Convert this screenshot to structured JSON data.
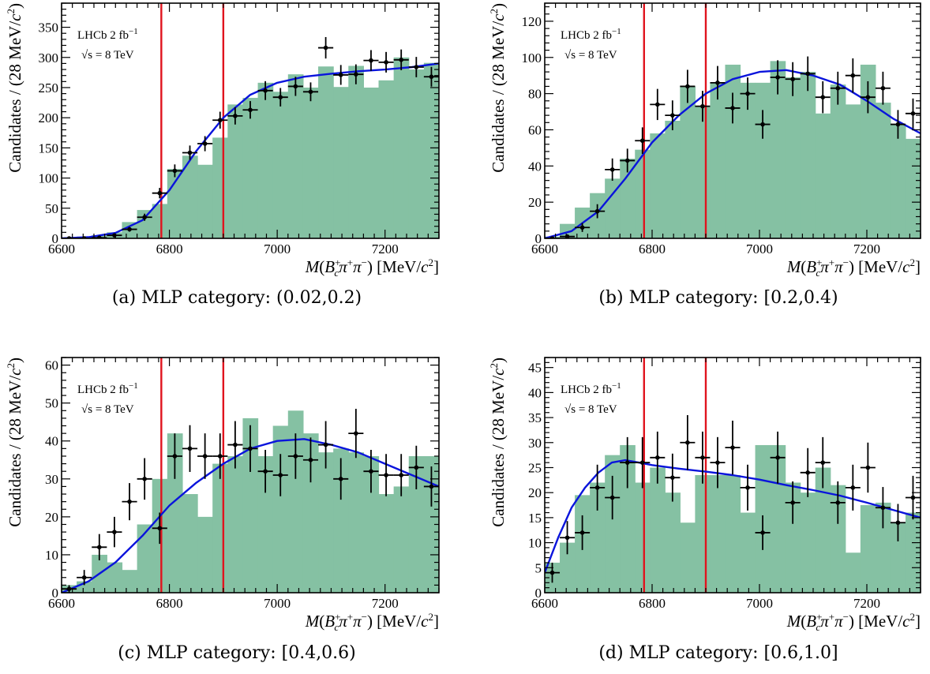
{
  "style": {
    "fill_color": "#85c1a3",
    "fit_color": "#0a14dc",
    "cut_line_color": "#e0141e",
    "point_color": "#000000"
  },
  "chart_data": [
    {
      "type": "histogram",
      "caption": "(a) MLP category: (0.02,0.2)",
      "experiment": "LHCb  2 fb⁻¹",
      "energy": "√s = 8 TeV",
      "xlabel": "M(B_c⁺π⁺π⁻) [MeV/c²]",
      "ylabel": "Candidates / (28 MeV/c²)",
      "xlim": [
        6600,
        7300
      ],
      "ylim": [
        0,
        390
      ],
      "xticks": [
        6600,
        6800,
        7000,
        7200
      ],
      "yticks": [
        0,
        50,
        100,
        150,
        200,
        250,
        300,
        350
      ],
      "cut_lines": [
        6785,
        6900
      ],
      "bin_edges": [
        6600,
        6628,
        6656,
        6684,
        6712,
        6740,
        6768,
        6796,
        6824,
        6852,
        6880,
        6908,
        6936,
        6964,
        6992,
        7020,
        7048,
        7076,
        7104,
        7132,
        7160,
        7188,
        7216,
        7244,
        7272,
        7300
      ],
      "fill": [
        0,
        3,
        5,
        10,
        27,
        47,
        57,
        115,
        137,
        122,
        167,
        222,
        233,
        258,
        243,
        272,
        250,
        285,
        251,
        286,
        250,
        262,
        300,
        280,
        291
      ],
      "points": {
        "x": [
          6614,
          6642,
          6670,
          6698,
          6726,
          6754,
          6782,
          6810,
          6838,
          6866,
          6894,
          6922,
          6950,
          6978,
          7006,
          7034,
          7062,
          7090,
          7118,
          7146,
          7174,
          7202,
          7230,
          7258,
          7286
        ],
        "y": [
          0,
          0,
          1,
          5,
          15,
          35,
          75,
          112,
          142,
          157,
          196,
          203,
          213,
          245,
          234,
          252,
          243,
          316,
          271,
          272,
          295,
          292,
          296,
          284,
          268
        ]
      },
      "fit": {
        "x": [
          6600,
          6650,
          6700,
          6750,
          6800,
          6850,
          6900,
          6950,
          7000,
          7050,
          7100,
          7150,
          7200,
          7250,
          7300
        ],
        "y": [
          0,
          2,
          9,
          30,
          80,
          145,
          200,
          238,
          258,
          268,
          273,
          277,
          280,
          284,
          290
        ]
      }
    },
    {
      "type": "histogram",
      "caption": "(b) MLP category: [0.2,0.4)",
      "experiment": "LHCb  2 fb⁻¹",
      "energy": "√s = 8 TeV",
      "xlabel": "M(B_c⁺π⁺π⁻) [MeV/c²]",
      "ylabel": "Candidates / (28 MeV/c²)",
      "xlim": [
        6600,
        7300
      ],
      "ylim": [
        0,
        130
      ],
      "xticks": [
        6600,
        6800,
        7000,
        7200
      ],
      "yticks": [
        0,
        20,
        40,
        60,
        80,
        100,
        120
      ],
      "cut_lines": [
        6785,
        6900
      ],
      "bin_edges": [
        6600,
        6628,
        6656,
        6684,
        6712,
        6740,
        6768,
        6796,
        6824,
        6852,
        6880,
        6908,
        6936,
        6964,
        6992,
        7020,
        7048,
        7076,
        7104,
        7132,
        7160,
        7188,
        7216,
        7244,
        7272,
        7300
      ],
      "fill": [
        1,
        8,
        17,
        25,
        33,
        44,
        49,
        58,
        65,
        84,
        73,
        86,
        96,
        86,
        86,
        98,
        89,
        92,
        69,
        85,
        74,
        96,
        75,
        63,
        55
      ],
      "points": {
        "x": [
          6614,
          6642,
          6670,
          6698,
          6726,
          6754,
          6782,
          6810,
          6838,
          6866,
          6894,
          6922,
          6950,
          6978,
          7006,
          7034,
          7062,
          7090,
          7118,
          7146,
          7174,
          7202,
          7230,
          7258,
          7286
        ],
        "y": [
          0,
          1,
          6,
          15,
          38,
          43,
          54,
          74,
          68,
          84,
          73,
          86,
          72,
          80,
          63,
          89,
          88,
          91,
          78,
          83,
          90,
          78,
          83,
          63,
          69
        ]
      },
      "fit": {
        "x": [
          6600,
          6650,
          6700,
          6750,
          6800,
          6850,
          6900,
          6950,
          7000,
          7050,
          7100,
          7150,
          7200,
          7250,
          7300
        ],
        "y": [
          0,
          4,
          15,
          33,
          53,
          68,
          80,
          88,
          92,
          93,
          90,
          85,
          76,
          66,
          58
        ]
      }
    },
    {
      "type": "histogram",
      "caption": "(c) MLP category: [0.4,0.6)",
      "experiment": "LHCb  2 fb⁻¹",
      "energy": "√s = 8 TeV",
      "xlabel": "M(B_c⁺π⁺π⁻) [MeV/c²]",
      "ylabel": "Candidates / (28 MeV/c²)",
      "xlim": [
        6600,
        7300
      ],
      "ylim": [
        0,
        62
      ],
      "xticks": [
        6600,
        6800,
        7000,
        7200
      ],
      "yticks": [
        0,
        10,
        20,
        30,
        40,
        50,
        60
      ],
      "cut_lines": [
        6785,
        6900
      ],
      "bin_edges": [
        6600,
        6628,
        6656,
        6684,
        6712,
        6740,
        6768,
        6796,
        6824,
        6852,
        6880,
        6908,
        6936,
        6964,
        6992,
        7020,
        7048,
        7076,
        7104,
        7132,
        7160,
        7188,
        7216,
        7244,
        7272,
        7300
      ],
      "fill": [
        2,
        3,
        10,
        8,
        6,
        18,
        30,
        42,
        26,
        20,
        34,
        36,
        46,
        36,
        44,
        48,
        42,
        37,
        38,
        37,
        36,
        26,
        28,
        36,
        36
      ],
      "points": {
        "x": [
          6614,
          6642,
          6670,
          6698,
          6726,
          6754,
          6782,
          6810,
          6838,
          6866,
          6894,
          6922,
          6950,
          6978,
          7006,
          7034,
          7062,
          7090,
          7118,
          7146,
          7174,
          7202,
          7230,
          7258,
          7286
        ],
        "y": [
          1,
          4,
          12,
          16,
          24,
          30,
          17,
          36,
          38,
          36,
          36,
          39,
          38,
          32,
          31,
          36,
          35,
          39,
          30,
          42,
          32,
          31,
          31,
          33,
          28
        ]
      },
      "fit": {
        "x": [
          6600,
          6650,
          6700,
          6750,
          6800,
          6850,
          6900,
          6950,
          7000,
          7050,
          7100,
          7150,
          7200,
          7250,
          7300
        ],
        "y": [
          0,
          3,
          8,
          15,
          23,
          29,
          34,
          38,
          40,
          40.5,
          39,
          37,
          34,
          31,
          28
        ]
      }
    },
    {
      "type": "histogram",
      "caption": "(d) MLP category: [0.6,1.0]",
      "experiment": "LHCb  2 fb⁻¹",
      "energy": "√s = 8 TeV",
      "xlabel": "M(B_c⁺π⁺π⁻) [MeV/c²]",
      "ylabel": "Candidates / (28 MeV/c²)",
      "xlim": [
        6600,
        7300
      ],
      "ylim": [
        0,
        47
      ],
      "xticks": [
        6600,
        6800,
        7000,
        7200
      ],
      "yticks": [
        0,
        5,
        10,
        15,
        20,
        25,
        30,
        35,
        40,
        45
      ],
      "cut_lines": [
        6785,
        6900
      ],
      "bin_edges": [
        6600,
        6628,
        6656,
        6684,
        6712,
        6740,
        6768,
        6796,
        6824,
        6852,
        6880,
        6908,
        6936,
        6964,
        6992,
        7020,
        7048,
        7076,
        7104,
        7132,
        7160,
        7188,
        7216,
        7244,
        7272,
        7300
      ],
      "fill": [
        6,
        10,
        19.5,
        22,
        27.5,
        29.5,
        22,
        25,
        20,
        14,
        23.5,
        23.5,
        23.5,
        16,
        29.5,
        29.5,
        22,
        20,
        25,
        21.5,
        8,
        17.5,
        18,
        14,
        16
      ],
      "points": {
        "x": [
          6614,
          6642,
          6670,
          6698,
          6726,
          6754,
          6782,
          6810,
          6838,
          6866,
          6894,
          6922,
          6950,
          6978,
          7006,
          7034,
          7062,
          7090,
          7118,
          7146,
          7174,
          7202,
          7230,
          7258,
          7286
        ],
        "y": [
          4,
          11,
          12,
          21,
          19,
          26,
          26,
          27,
          23,
          30,
          27,
          26,
          29,
          21,
          12,
          27,
          18,
          24,
          26,
          18,
          21,
          25,
          17,
          14,
          19
        ]
      },
      "fit": {
        "x": [
          6600,
          6625,
          6650,
          6675,
          6700,
          6725,
          6750,
          6775,
          6800,
          6850,
          6900,
          6950,
          7000,
          7050,
          7100,
          7150,
          7200,
          7250,
          7300
        ],
        "y": [
          4,
          11,
          17,
          21,
          24,
          26,
          26.5,
          26,
          25.5,
          24.8,
          24.2,
          23.5,
          22.6,
          21.5,
          20.5,
          19.4,
          18,
          16.5,
          15
        ]
      }
    }
  ]
}
